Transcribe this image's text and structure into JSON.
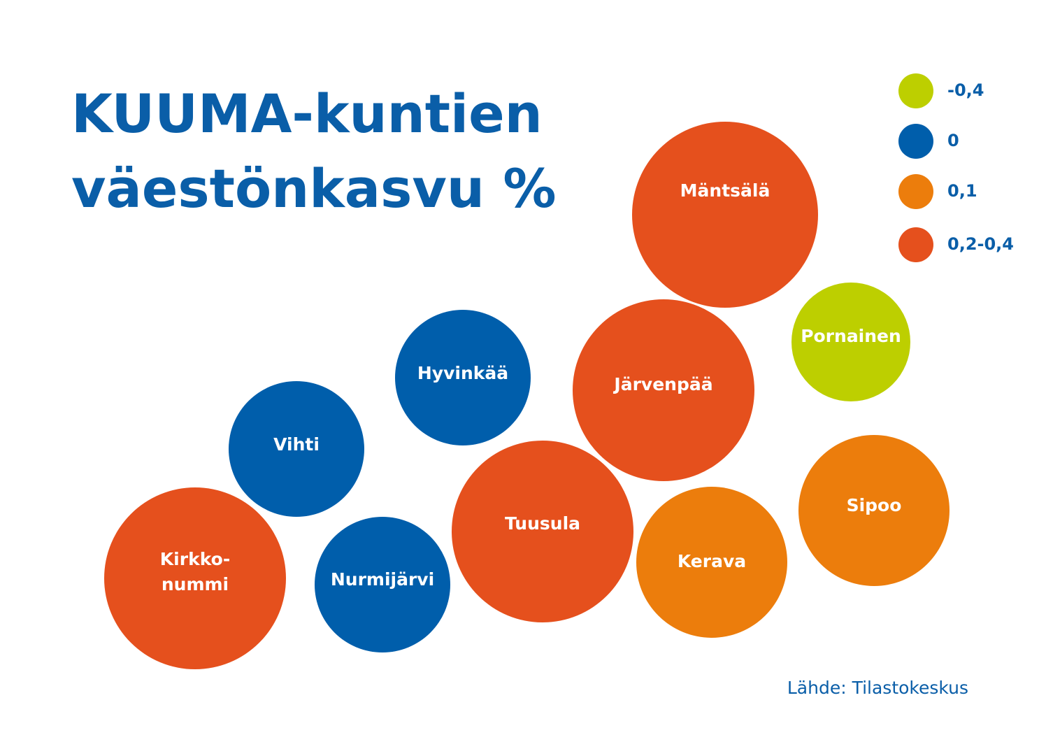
{
  "header": {
    "title_lines": [
      "KUUMA-kuntien",
      "väestönkasvu %"
    ]
  },
  "legend": [
    {
      "label": "-0,4",
      "color": "#bdcf00"
    },
    {
      "label": "0",
      "color": "#005eab"
    },
    {
      "label": "0,1",
      "color": "#ec7d0c"
    },
    {
      "label": "0,2-0,4",
      "color": "#e5501d"
    }
  ],
  "nodes": [
    {
      "label_lines": [
        "Mäntsälä"
      ],
      "color": "#e5501d"
    },
    {
      "label_lines": [
        "Pornainen"
      ],
      "color": "#bdcf00"
    },
    {
      "label_lines": [
        "Hyvinkää"
      ],
      "color": "#005eab"
    },
    {
      "label_lines": [
        "Järvenpää"
      ],
      "color": "#e5501d"
    },
    {
      "label_lines": [
        "Vihti"
      ],
      "color": "#005eab"
    },
    {
      "label_lines": [
        "Tuusula"
      ],
      "color": "#e5501d"
    },
    {
      "label_lines": [
        "Kerava"
      ],
      "color": "#ec7d0c"
    },
    {
      "label_lines": [
        "Sipoo"
      ],
      "color": "#ec7d0c"
    },
    {
      "label_lines": [
        "Kirkko-",
        "nummi"
      ],
      "color": "#e5501d"
    },
    {
      "label_lines": [
        "Nurmijärvi"
      ],
      "color": "#005eab"
    }
  ],
  "footer": {
    "source": "Lähde: Tilastokeskus"
  }
}
